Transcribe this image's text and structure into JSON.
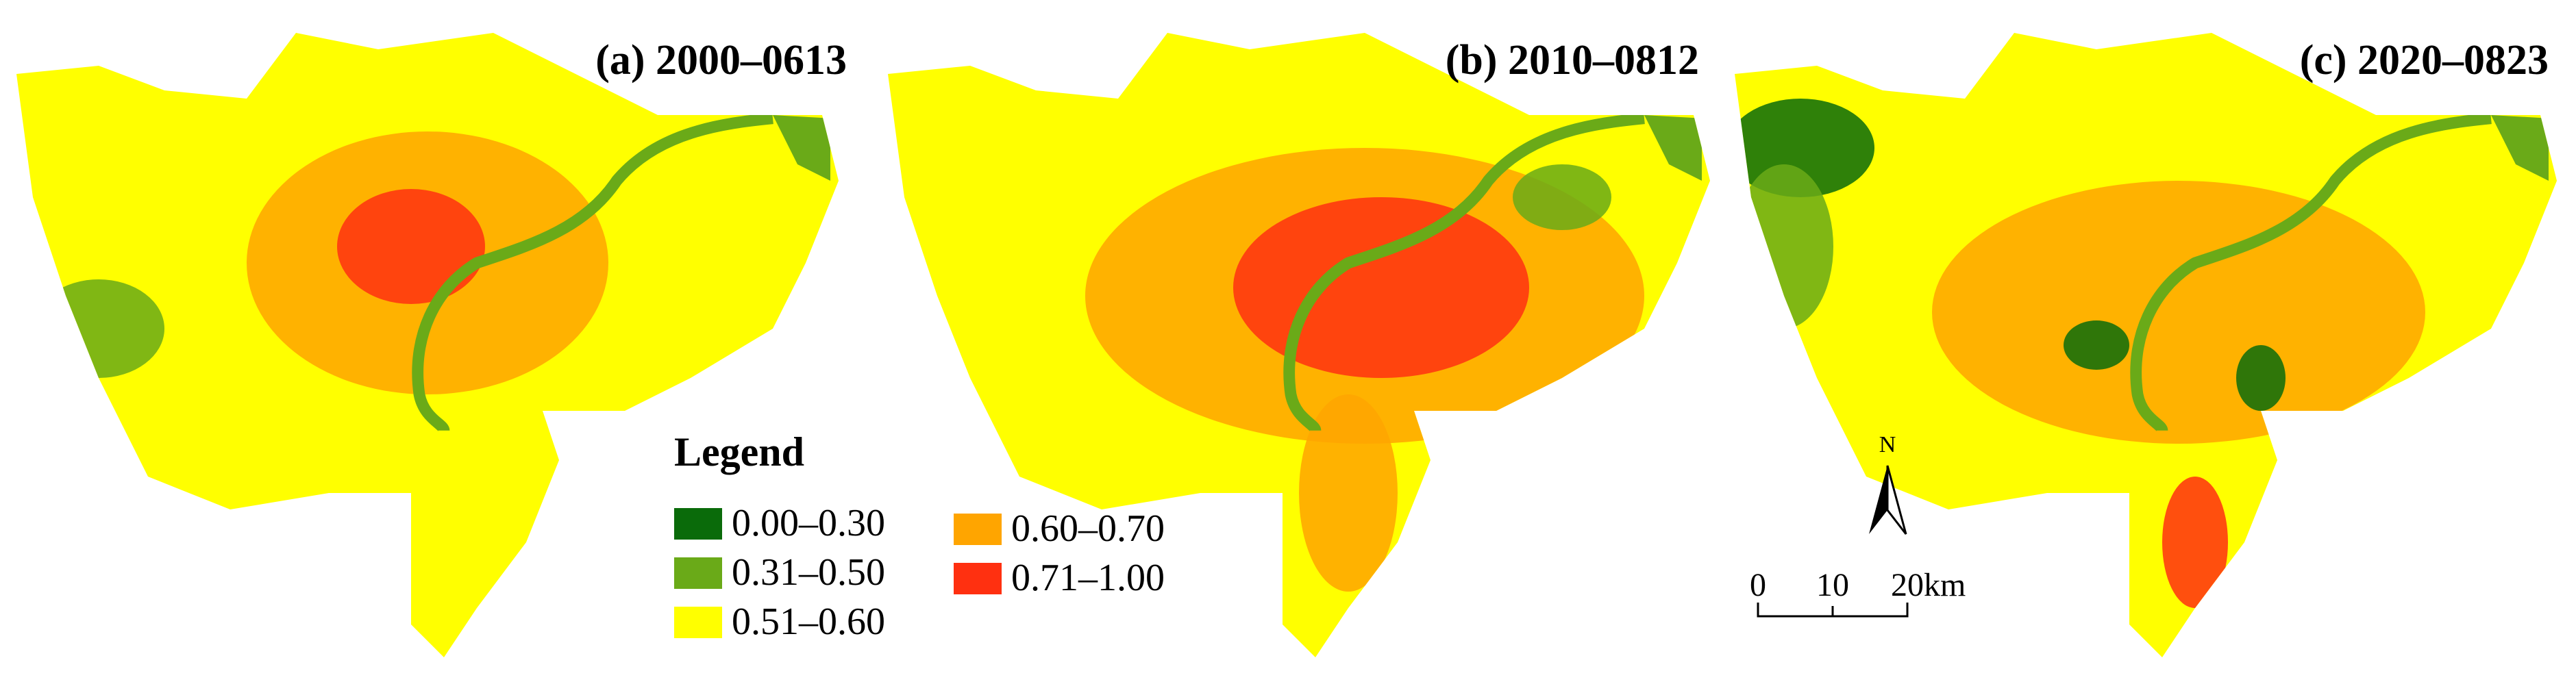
{
  "panels": [
    {
      "title": "(a) 2000–0613"
    },
    {
      "title": "(b) 2010–0812"
    },
    {
      "title": "(c) 2020–0823"
    }
  ],
  "legend": {
    "title": "Legend",
    "items": [
      {
        "label": "0.00–0.30",
        "color": "#0a6b0a"
      },
      {
        "label": "0.31–0.50",
        "color": "#6aaa18"
      },
      {
        "label": "0.51–0.60",
        "color": "#ffff00"
      },
      {
        "label": "0.60–0.70",
        "color": "#ffa500"
      },
      {
        "label": "0.71–1.00",
        "color": "#ff3010"
      }
    ]
  },
  "north": "N",
  "scale_bar": {
    "labels": [
      "0",
      "10",
      "20km"
    ]
  }
}
